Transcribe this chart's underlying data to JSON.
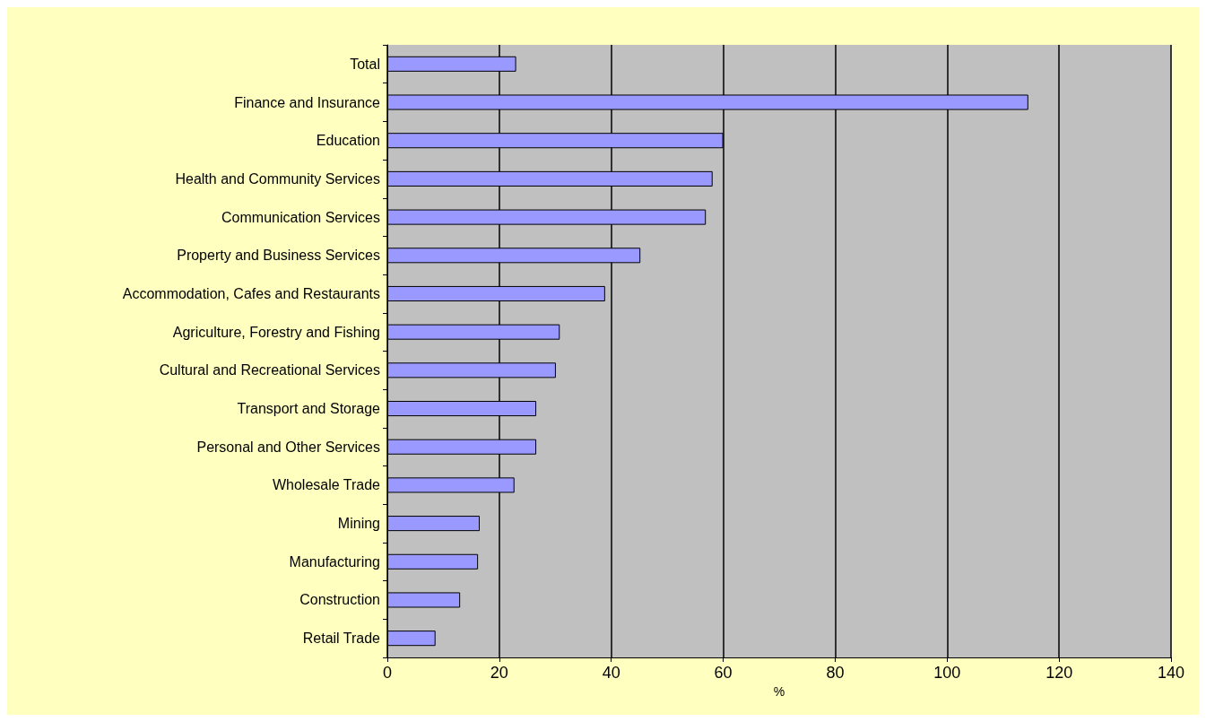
{
  "chart_data": {
    "type": "bar",
    "orientation": "horizontal",
    "xlabel": "%",
    "categories": [
      "Total",
      "Finance and Insurance",
      "Education",
      "Health and Community Services",
      "Communication Services",
      "Property and Business Services",
      "Accommodation, Cafes and Restaurants",
      "Agriculture, Forestry and Fishing",
      "Cultural and Recreational Services",
      "Transport and Storage",
      "Personal and Other Services",
      "Wholesale Trade",
      "Mining",
      "Manufacturing",
      "Construction",
      "Retail Trade"
    ],
    "values": [
      23,
      114.5,
      60,
      58.1,
      56.9,
      45.2,
      38.9,
      30.8,
      30.1,
      26.6,
      26.6,
      22.7,
      16.5,
      16.2,
      13,
      8.6
    ],
    "color": "#9999ff",
    "xlim": [
      0,
      140
    ],
    "xticks": [
      0,
      20,
      40,
      60,
      80,
      100,
      120,
      140
    ],
    "grid": "x"
  }
}
